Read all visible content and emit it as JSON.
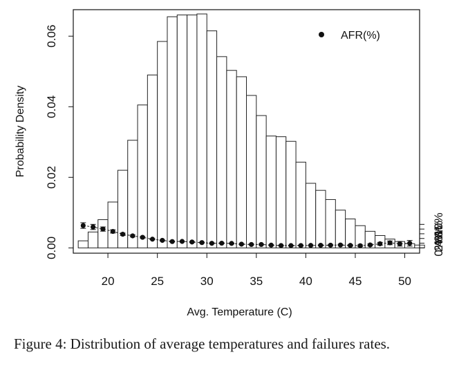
{
  "caption": "Figure 4:  Distribution of average temperatures and failures rates.",
  "chart_data": {
    "type": "bar",
    "title": "",
    "xlabel": "Avg. Temperature (C)",
    "ylabel": "Probability Density",
    "y2label": "",
    "xlim": [
      16.5,
      51.5
    ],
    "ylim": [
      -0.0015,
      0.0675
    ],
    "y2lim": [
      -0.0225,
      1.0125
    ],
    "x_ticks": [
      "20",
      "25",
      "30",
      "35",
      "40",
      "45",
      "50"
    ],
    "y_ticks": [
      "0.00",
      "0.02",
      "0.04",
      "0.06"
    ],
    "y2_ticks": [
      "0%",
      "2%",
      "4%",
      "6%",
      "8%",
      "10%"
    ],
    "grid": false,
    "legend_position": "top-right",
    "legend": [
      "AFR(%)"
    ],
    "colors": {
      "bar_fill": "#ffffff",
      "bar_stroke": "#222222",
      "points": "#111111",
      "text": "#111111"
    },
    "histogram": {
      "name": "",
      "bin_width": 1,
      "bin_starts": [
        17,
        18,
        19,
        20,
        21,
        22,
        23,
        24,
        25,
        26,
        27,
        28,
        29,
        30,
        31,
        32,
        33,
        34,
        35,
        36,
        37,
        38,
        39,
        40,
        41,
        42,
        43,
        44,
        45,
        46,
        47,
        48,
        49,
        50,
        51
      ],
      "density": [
        0.002,
        0.0045,
        0.008,
        0.013,
        0.022,
        0.0305,
        0.0405,
        0.049,
        0.0585,
        0.0655,
        0.066,
        0.066,
        0.0663,
        0.0615,
        0.0542,
        0.0503,
        0.0485,
        0.0432,
        0.0375,
        0.0317,
        0.0315,
        0.0302,
        0.0243,
        0.0183,
        0.0163,
        0.0137,
        0.0107,
        0.0082,
        0.0063,
        0.0047,
        0.0035,
        0.0025,
        0.0018,
        0.0012,
        0.0008
      ]
    },
    "afr": {
      "name": "AFR(%)",
      "x": [
        17.5,
        18.5,
        19.5,
        20.5,
        21.5,
        22.5,
        23.5,
        24.5,
        25.5,
        26.5,
        27.5,
        28.5,
        29.5,
        30.5,
        31.5,
        32.5,
        33.5,
        34.5,
        35.5,
        36.5,
        37.5,
        38.5,
        39.5,
        40.5,
        41.5,
        42.5,
        43.5,
        44.5,
        45.5,
        46.5,
        47.5,
        48.5,
        49.5,
        50.5
      ],
      "y": [
        0.095,
        0.089,
        0.08,
        0.07,
        0.058,
        0.051,
        0.045,
        0.037,
        0.032,
        0.027,
        0.0275,
        0.025,
        0.0225,
        0.0195,
        0.02,
        0.019,
        0.0158,
        0.0145,
        0.0145,
        0.0117,
        0.01,
        0.0098,
        0.0101,
        0.0105,
        0.011,
        0.0115,
        0.0123,
        0.0105,
        0.0093,
        0.0125,
        0.0175,
        0.0215,
        0.0175,
        0.0195
      ],
      "err": [
        0.012,
        0.011,
        0.009,
        0.007,
        0.005,
        0.004,
        0.003,
        0.002,
        0.0015,
        0.0015,
        0.0015,
        0.0015,
        0.0015,
        0.0015,
        0.0015,
        0.0015,
        0.0015,
        0.0015,
        0.0015,
        0.0015,
        0.0015,
        0.0015,
        0.0015,
        0.0015,
        0.002,
        0.002,
        0.0025,
        0.003,
        0.0035,
        0.004,
        0.006,
        0.008,
        0.01,
        0.012
      ]
    }
  }
}
